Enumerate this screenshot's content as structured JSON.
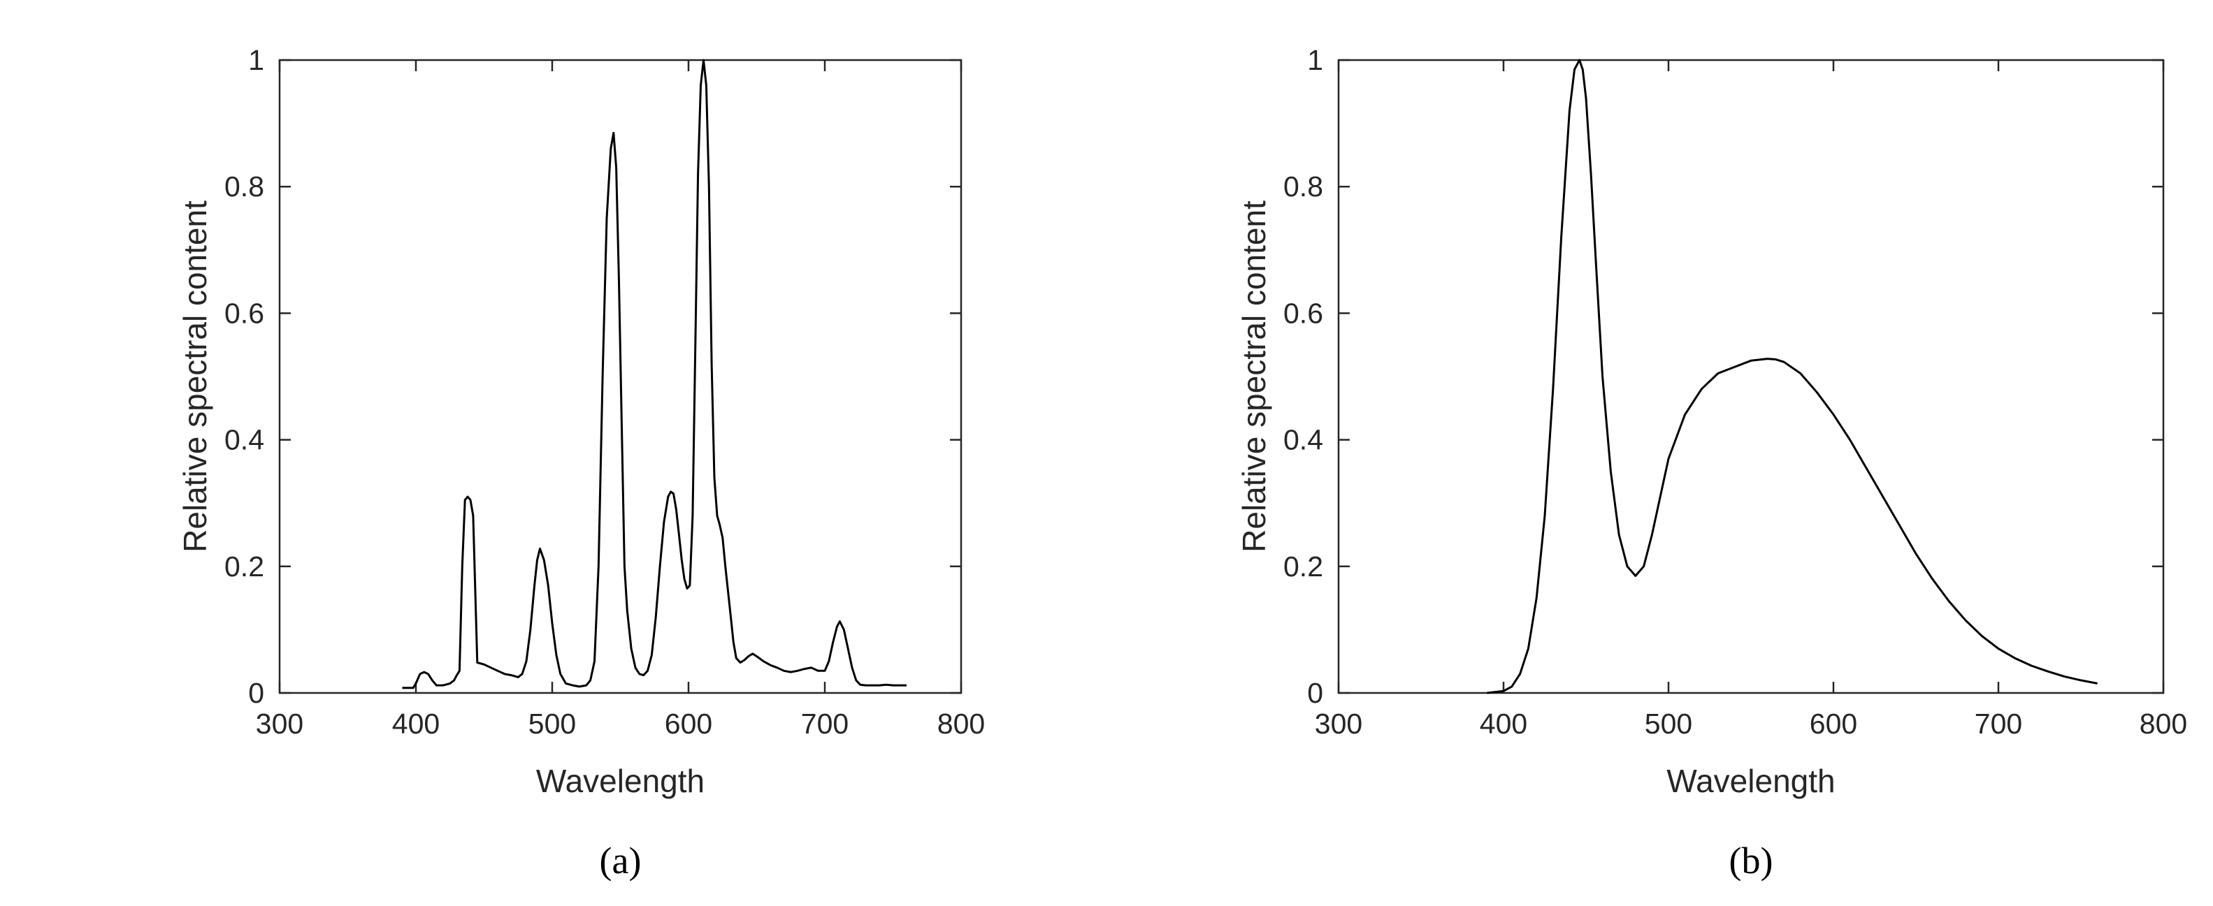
{
  "chart_data": [
    {
      "type": "line",
      "panel_label": "(a)",
      "xlabel": "Wavelength",
      "ylabel": "Relative spectral content",
      "xlim": [
        300,
        800
      ],
      "ylim": [
        0,
        1
      ],
      "xticks": [
        300,
        400,
        500,
        600,
        700,
        800
      ],
      "yticks": [
        0,
        0.2,
        0.4,
        0.6,
        0.8,
        1
      ],
      "ytick_labels": [
        "0",
        "0.2",
        "0.4",
        "0.6",
        "0.8",
        "1"
      ],
      "grid": false,
      "legend": "none",
      "series": [
        {
          "x": [
            390,
            398,
            400,
            403,
            406,
            409,
            412,
            415,
            420,
            425,
            428,
            430,
            432,
            434,
            436,
            438,
            440,
            442,
            445,
            450,
            455,
            460,
            465,
            470,
            475,
            478,
            481,
            484,
            487,
            489,
            491,
            494,
            497,
            500,
            503,
            506,
            510,
            515,
            520,
            525,
            528,
            531,
            534,
            537,
            540,
            543,
            545,
            547,
            549,
            551,
            553,
            555,
            558,
            561,
            564,
            567,
            570,
            573,
            576,
            579,
            582,
            585,
            587,
            589,
            591,
            593,
            595,
            597,
            599,
            601,
            603,
            605,
            607,
            609,
            611,
            613,
            615,
            617,
            619,
            621,
            623,
            625,
            627,
            629,
            631,
            633,
            635,
            638,
            641,
            644,
            647,
            650,
            655,
            660,
            665,
            670,
            675,
            680,
            685,
            690,
            695,
            700,
            703,
            706,
            709,
            711,
            714,
            717,
            720,
            723,
            726,
            730,
            735,
            740,
            745,
            750,
            755,
            760
          ],
          "y": [
            0.008,
            0.008,
            0.015,
            0.03,
            0.033,
            0.03,
            0.02,
            0.012,
            0.012,
            0.015,
            0.02,
            0.028,
            0.035,
            0.2,
            0.305,
            0.31,
            0.305,
            0.28,
            0.048,
            0.045,
            0.04,
            0.035,
            0.03,
            0.028,
            0.025,
            0.03,
            0.05,
            0.1,
            0.17,
            0.21,
            0.228,
            0.21,
            0.17,
            0.11,
            0.06,
            0.03,
            0.015,
            0.012,
            0.01,
            0.012,
            0.02,
            0.05,
            0.2,
            0.5,
            0.75,
            0.86,
            0.885,
            0.83,
            0.65,
            0.42,
            0.2,
            0.13,
            0.07,
            0.04,
            0.03,
            0.028,
            0.035,
            0.06,
            0.12,
            0.2,
            0.27,
            0.31,
            0.318,
            0.315,
            0.29,
            0.25,
            0.21,
            0.18,
            0.165,
            0.17,
            0.28,
            0.55,
            0.82,
            0.96,
            1.0,
            0.96,
            0.8,
            0.52,
            0.34,
            0.28,
            0.265,
            0.245,
            0.2,
            0.16,
            0.12,
            0.08,
            0.055,
            0.048,
            0.052,
            0.058,
            0.062,
            0.058,
            0.05,
            0.044,
            0.04,
            0.035,
            0.033,
            0.035,
            0.038,
            0.04,
            0.035,
            0.035,
            0.05,
            0.08,
            0.105,
            0.113,
            0.1,
            0.07,
            0.04,
            0.02,
            0.013,
            0.012,
            0.012,
            0.012,
            0.013,
            0.012,
            0.012,
            0.012
          ]
        }
      ]
    },
    {
      "type": "line",
      "panel_label": "(b)",
      "xlabel": "Wavelength",
      "ylabel": "Relative spectral content",
      "xlim": [
        300,
        800
      ],
      "ylim": [
        0,
        1
      ],
      "xticks": [
        300,
        400,
        500,
        600,
        700,
        800
      ],
      "yticks": [
        0,
        0.2,
        0.4,
        0.6,
        0.8,
        1
      ],
      "ytick_labels": [
        "0",
        "0.2",
        "0.4",
        "0.6",
        "0.8",
        "1"
      ],
      "grid": false,
      "legend": "none",
      "series": [
        {
          "x": [
            390,
            400,
            405,
            410,
            415,
            420,
            425,
            430,
            435,
            440,
            443,
            446,
            448,
            450,
            453,
            456,
            460,
            465,
            470,
            475,
            480,
            485,
            490,
            495,
            500,
            510,
            520,
            530,
            540,
            550,
            560,
            565,
            570,
            580,
            590,
            600,
            610,
            620,
            630,
            640,
            650,
            660,
            670,
            680,
            690,
            700,
            710,
            720,
            730,
            740,
            750,
            760
          ],
          "y": [
            0,
            0.003,
            0.01,
            0.03,
            0.07,
            0.15,
            0.28,
            0.48,
            0.72,
            0.92,
            0.985,
            1.0,
            0.985,
            0.94,
            0.82,
            0.68,
            0.5,
            0.35,
            0.25,
            0.2,
            0.185,
            0.2,
            0.25,
            0.31,
            0.37,
            0.44,
            0.48,
            0.505,
            0.515,
            0.525,
            0.528,
            0.527,
            0.523,
            0.505,
            0.475,
            0.44,
            0.4,
            0.355,
            0.31,
            0.265,
            0.22,
            0.18,
            0.145,
            0.115,
            0.09,
            0.07,
            0.055,
            0.043,
            0.034,
            0.026,
            0.02,
            0.015
          ]
        }
      ]
    }
  ]
}
